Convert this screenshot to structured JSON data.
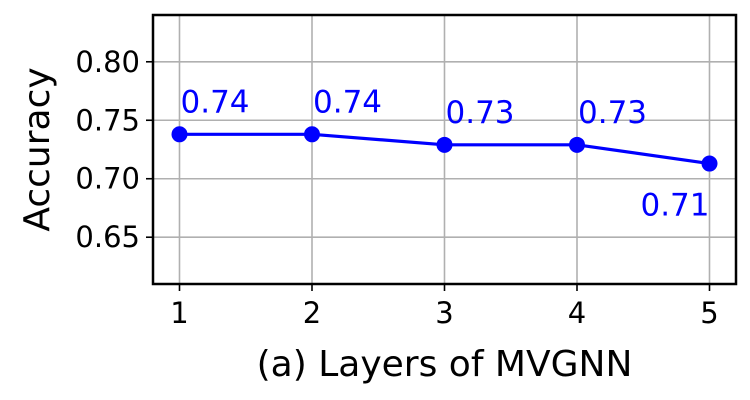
{
  "chart_data": {
    "type": "line",
    "x": [
      1,
      2,
      3,
      4,
      5
    ],
    "series": [
      {
        "values": [
          0.738,
          0.738,
          0.729,
          0.729,
          0.713
        ],
        "data_labels": [
          "0.74",
          "0.74",
          "0.73",
          "0.73",
          "0.71"
        ],
        "color": "#0000ff",
        "marker": "circle"
      }
    ],
    "xlabel": "(a) Layers of MVGNN",
    "ylabel": "Accuracy",
    "xlim": [
      0.8,
      5.2
    ],
    "ylim": [
      0.61,
      0.84
    ],
    "xticks": [
      1,
      2,
      3,
      4,
      5
    ],
    "xtick_labels": [
      "1",
      "2",
      "3",
      "4",
      "5"
    ],
    "yticks": [
      0.65,
      0.7,
      0.75,
      0.8
    ],
    "ytick_labels": [
      "0.65",
      "0.70",
      "0.75",
      "0.80"
    ],
    "grid": true,
    "legend": false
  }
}
